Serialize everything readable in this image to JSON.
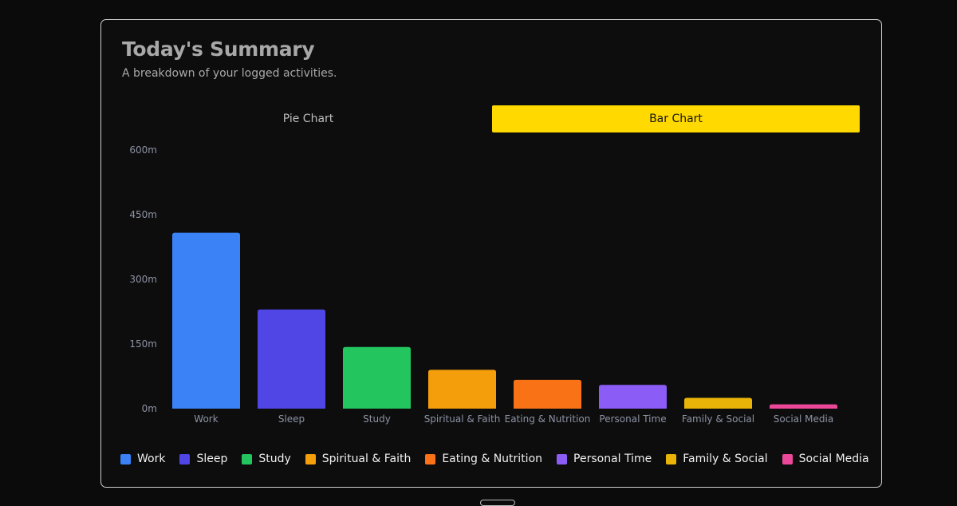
{
  "header": {
    "title": "Today's Summary",
    "subtitle": "A breakdown of your logged activities."
  },
  "tabs": [
    {
      "label": "Pie Chart",
      "active": false
    },
    {
      "label": "Bar Chart",
      "active": true
    }
  ],
  "colors": {
    "accent": "#ffd900",
    "Work": "#3b82f6",
    "Sleep": "#4f46e5",
    "Study": "#22c55e",
    "Spiritual & Faith": "#f59e0b",
    "Eating & Nutrition": "#f97316",
    "Personal Time": "#8b5cf6",
    "Family & Social": "#eab308",
    "Social Media": "#ec4899"
  },
  "chart_data": {
    "type": "bar",
    "categories": [
      "Work",
      "Sleep",
      "Study",
      "Spiritual & Faith",
      "Eating & Nutrition",
      "Personal Time",
      "Family & Social",
      "Social Media"
    ],
    "values": [
      408,
      230,
      143,
      90,
      67,
      55,
      25,
      10
    ],
    "unit": "m",
    "yticks": [
      "0m",
      "150m",
      "300m",
      "450m",
      "600m"
    ],
    "ylim": [
      0,
      600
    ],
    "grid": false,
    "legend": "bottom"
  }
}
